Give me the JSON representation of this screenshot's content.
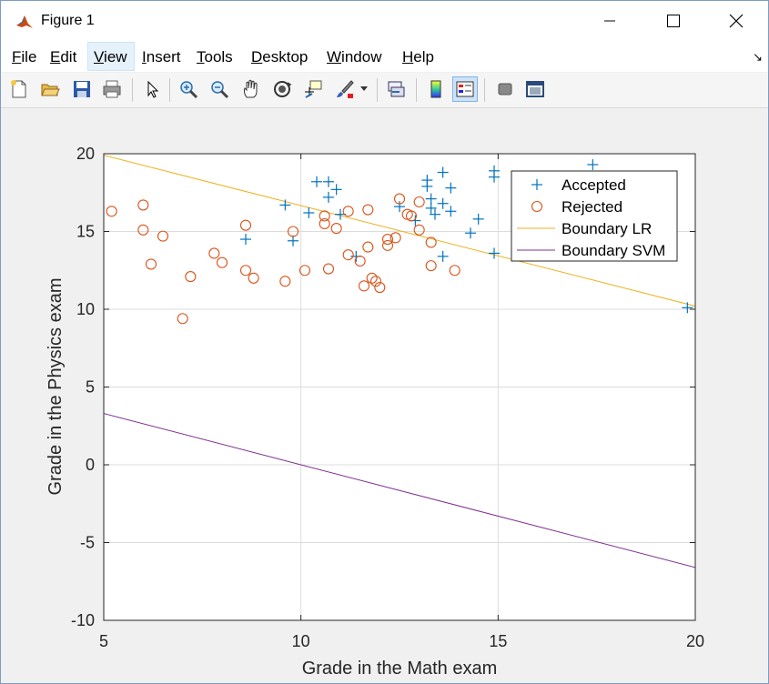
{
  "window": {
    "title": "Figure 1",
    "controls": {
      "minimize": "minimize",
      "maximize": "maximize",
      "close": "close"
    }
  },
  "menu": [
    {
      "label": "File",
      "key": "F"
    },
    {
      "label": "Edit",
      "key": "E"
    },
    {
      "label": "View",
      "key": "V"
    },
    {
      "label": "Insert",
      "key": "I"
    },
    {
      "label": "Tools",
      "key": "T"
    },
    {
      "label": "Desktop",
      "key": "D"
    },
    {
      "label": "Window",
      "key": "W"
    },
    {
      "label": "Help",
      "key": "H"
    }
  ],
  "toolbar": [
    "new-figure-icon",
    "open-file-icon",
    "save-icon",
    "print-icon",
    "pointer-icon",
    "zoom-in-icon",
    "zoom-out-icon",
    "pan-hand-icon",
    "rotate-3d-icon",
    "data-cursor-icon",
    "brush-icon",
    "link-plot-icon",
    "colorbar-icon",
    "legend-icon",
    "hide-plot-tools-icon",
    "show-plot-tools-icon"
  ],
  "colors": {
    "accepted": "#0072bd",
    "rejected": "#d95319",
    "lr": "#edb120",
    "svm": "#7e2f8e"
  },
  "chart_data": {
    "type": "scatter",
    "title": "",
    "xlabel": "Grade in the Math exam",
    "ylabel": "Grade in the Physics exam",
    "xlim": [
      5,
      20
    ],
    "ylim": [
      -10,
      20
    ],
    "xticks": [
      5,
      10,
      15,
      20
    ],
    "yticks": [
      -10,
      -5,
      0,
      5,
      10,
      15,
      20
    ],
    "grid": true,
    "legend_position": "top-right",
    "series": [
      {
        "name": "Accepted",
        "marker": "+",
        "points": [
          [
            8.6,
            14.5
          ],
          [
            9.6,
            16.7
          ],
          [
            9.8,
            14.4
          ],
          [
            10.2,
            16.2
          ],
          [
            10.4,
            18.2
          ],
          [
            10.7,
            18.2
          ],
          [
            10.7,
            17.2
          ],
          [
            10.9,
            17.7
          ],
          [
            11.0,
            16.1
          ],
          [
            11.4,
            13.4
          ],
          [
            12.5,
            16.6
          ],
          [
            12.9,
            15.7
          ],
          [
            13.2,
            18.3
          ],
          [
            13.2,
            17.9
          ],
          [
            13.3,
            17.1
          ],
          [
            13.3,
            16.5
          ],
          [
            13.4,
            16.1
          ],
          [
            13.6,
            18.8
          ],
          [
            13.6,
            16.8
          ],
          [
            13.6,
            13.4
          ],
          [
            13.8,
            17.8
          ],
          [
            13.8,
            16.3
          ],
          [
            14.3,
            14.9
          ],
          [
            14.5,
            15.8
          ],
          [
            14.9,
            18.9
          ],
          [
            14.9,
            18.5
          ],
          [
            14.9,
            13.6
          ],
          [
            17.4,
            19.3
          ],
          [
            19.8,
            10.1
          ]
        ]
      },
      {
        "name": "Rejected",
        "marker": "o",
        "points": [
          [
            5.2,
            16.3
          ],
          [
            6.0,
            16.7
          ],
          [
            6.0,
            15.1
          ],
          [
            6.2,
            12.9
          ],
          [
            6.5,
            14.7
          ],
          [
            7.0,
            9.4
          ],
          [
            7.2,
            12.1
          ],
          [
            7.8,
            13.6
          ],
          [
            8.0,
            13.0
          ],
          [
            8.6,
            15.4
          ],
          [
            8.6,
            12.5
          ],
          [
            8.8,
            12.0
          ],
          [
            9.6,
            11.8
          ],
          [
            9.8,
            15.0
          ],
          [
            10.1,
            12.5
          ],
          [
            10.6,
            16.0
          ],
          [
            10.6,
            15.5
          ],
          [
            10.7,
            12.6
          ],
          [
            10.9,
            15.2
          ],
          [
            11.2,
            16.3
          ],
          [
            11.2,
            13.5
          ],
          [
            11.5,
            13.1
          ],
          [
            11.6,
            11.5
          ],
          [
            11.7,
            16.4
          ],
          [
            11.7,
            14.0
          ],
          [
            11.8,
            12.0
          ],
          [
            11.9,
            11.8
          ],
          [
            12.0,
            11.4
          ],
          [
            12.2,
            14.5
          ],
          [
            12.2,
            14.1
          ],
          [
            12.4,
            14.6
          ],
          [
            12.5,
            17.1
          ],
          [
            12.7,
            16.1
          ],
          [
            12.8,
            16.0
          ],
          [
            13.0,
            16.9
          ],
          [
            13.0,
            15.1
          ],
          [
            13.3,
            14.3
          ],
          [
            13.3,
            12.8
          ],
          [
            13.9,
            12.5
          ]
        ]
      },
      {
        "name": "Boundary LR",
        "type": "line",
        "points": [
          [
            5,
            19.9
          ],
          [
            20,
            10.2
          ]
        ]
      },
      {
        "name": "Boundary SVM",
        "type": "line",
        "points": [
          [
            5,
            3.3
          ],
          [
            20,
            -6.6
          ]
        ]
      }
    ]
  }
}
